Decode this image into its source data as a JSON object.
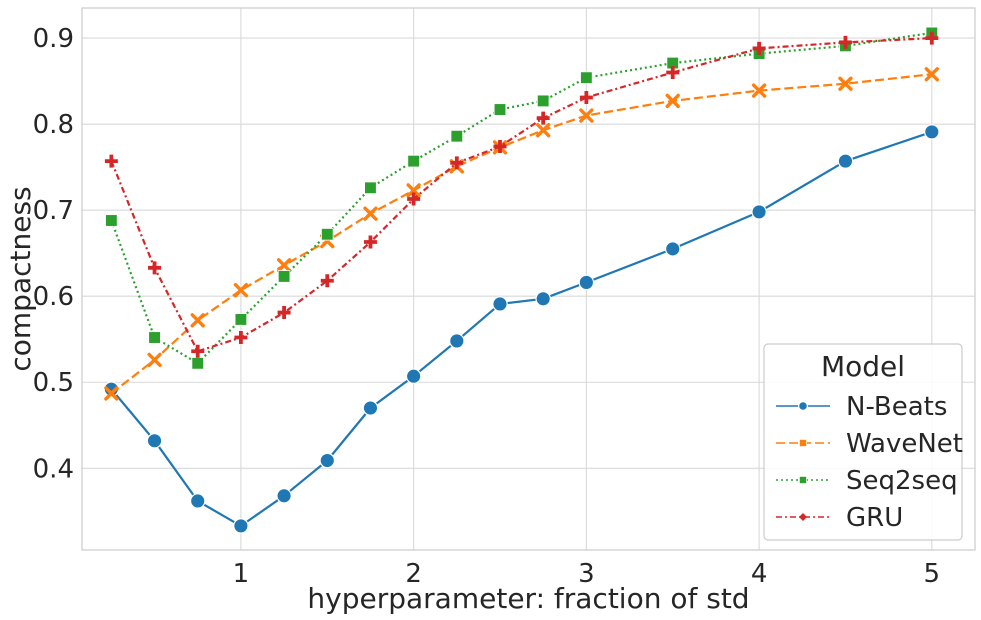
{
  "chart_data": {
    "type": "line",
    "xlabel": "hyperparameter: fraction of std",
    "ylabel": "compactness",
    "xlim": [
      0.08,
      5.25
    ],
    "ylim": [
      0.305,
      0.935
    ],
    "xticks": [
      1,
      2,
      3,
      4,
      5
    ],
    "xtick_labels": [
      "1",
      "2",
      "3",
      "4",
      "5"
    ],
    "yticks": [
      0.4,
      0.5,
      0.6,
      0.7,
      0.8,
      0.9
    ],
    "ytick_labels": [
      "0.4",
      "0.5",
      "0.6",
      "0.7",
      "0.8",
      "0.9"
    ],
    "grid": true,
    "legend": {
      "title": "Model",
      "position": "lower-right"
    },
    "series": [
      {
        "name": "N-Beats",
        "color": "#1f77b4",
        "marker": "circle",
        "dash": "solid",
        "x": [
          0.25,
          0.5,
          0.75,
          1.0,
          1.25,
          1.5,
          1.75,
          2.0,
          2.25,
          2.5,
          2.75,
          3.0,
          3.5,
          4.0,
          4.5,
          5.0
        ],
        "y": [
          0.492,
          0.432,
          0.362,
          0.333,
          0.368,
          0.409,
          0.47,
          0.507,
          0.548,
          0.591,
          0.597,
          0.616,
          0.655,
          0.698,
          0.757,
          0.791
        ]
      },
      {
        "name": "WaveNet",
        "color": "#ff7f0e",
        "marker": "x",
        "dash": "dashed",
        "x": [
          0.25,
          0.5,
          0.75,
          1.0,
          1.25,
          1.5,
          1.75,
          2.0,
          2.25,
          2.5,
          2.75,
          3.0,
          3.5,
          4.0,
          4.5,
          5.0
        ],
        "y": [
          0.487,
          0.526,
          0.572,
          0.607,
          0.636,
          0.664,
          0.696,
          0.723,
          0.751,
          0.773,
          0.793,
          0.81,
          0.827,
          0.839,
          0.847,
          0.858
        ]
      },
      {
        "name": "Seq2seq",
        "color": "#2ca02c",
        "marker": "square",
        "dash": "dotted",
        "x": [
          0.25,
          0.5,
          0.75,
          1.0,
          1.25,
          1.5,
          1.75,
          2.0,
          2.25,
          2.5,
          2.75,
          3.0,
          3.5,
          4.0,
          4.5,
          5.0
        ],
        "y": [
          0.688,
          0.552,
          0.522,
          0.573,
          0.623,
          0.672,
          0.726,
          0.757,
          0.786,
          0.817,
          0.827,
          0.854,
          0.871,
          0.882,
          0.891,
          0.906
        ]
      },
      {
        "name": "GRU",
        "color": "#d62728",
        "marker": "plus",
        "dash": "dashdot",
        "x": [
          0.25,
          0.5,
          0.75,
          1.0,
          1.25,
          1.5,
          1.75,
          2.0,
          2.25,
          2.5,
          2.75,
          3.0,
          3.5,
          4.0,
          4.5,
          5.0
        ],
        "y": [
          0.757,
          0.633,
          0.536,
          0.552,
          0.581,
          0.618,
          0.663,
          0.713,
          0.755,
          0.774,
          0.807,
          0.831,
          0.86,
          0.888,
          0.895,
          0.9
        ]
      }
    ]
  }
}
